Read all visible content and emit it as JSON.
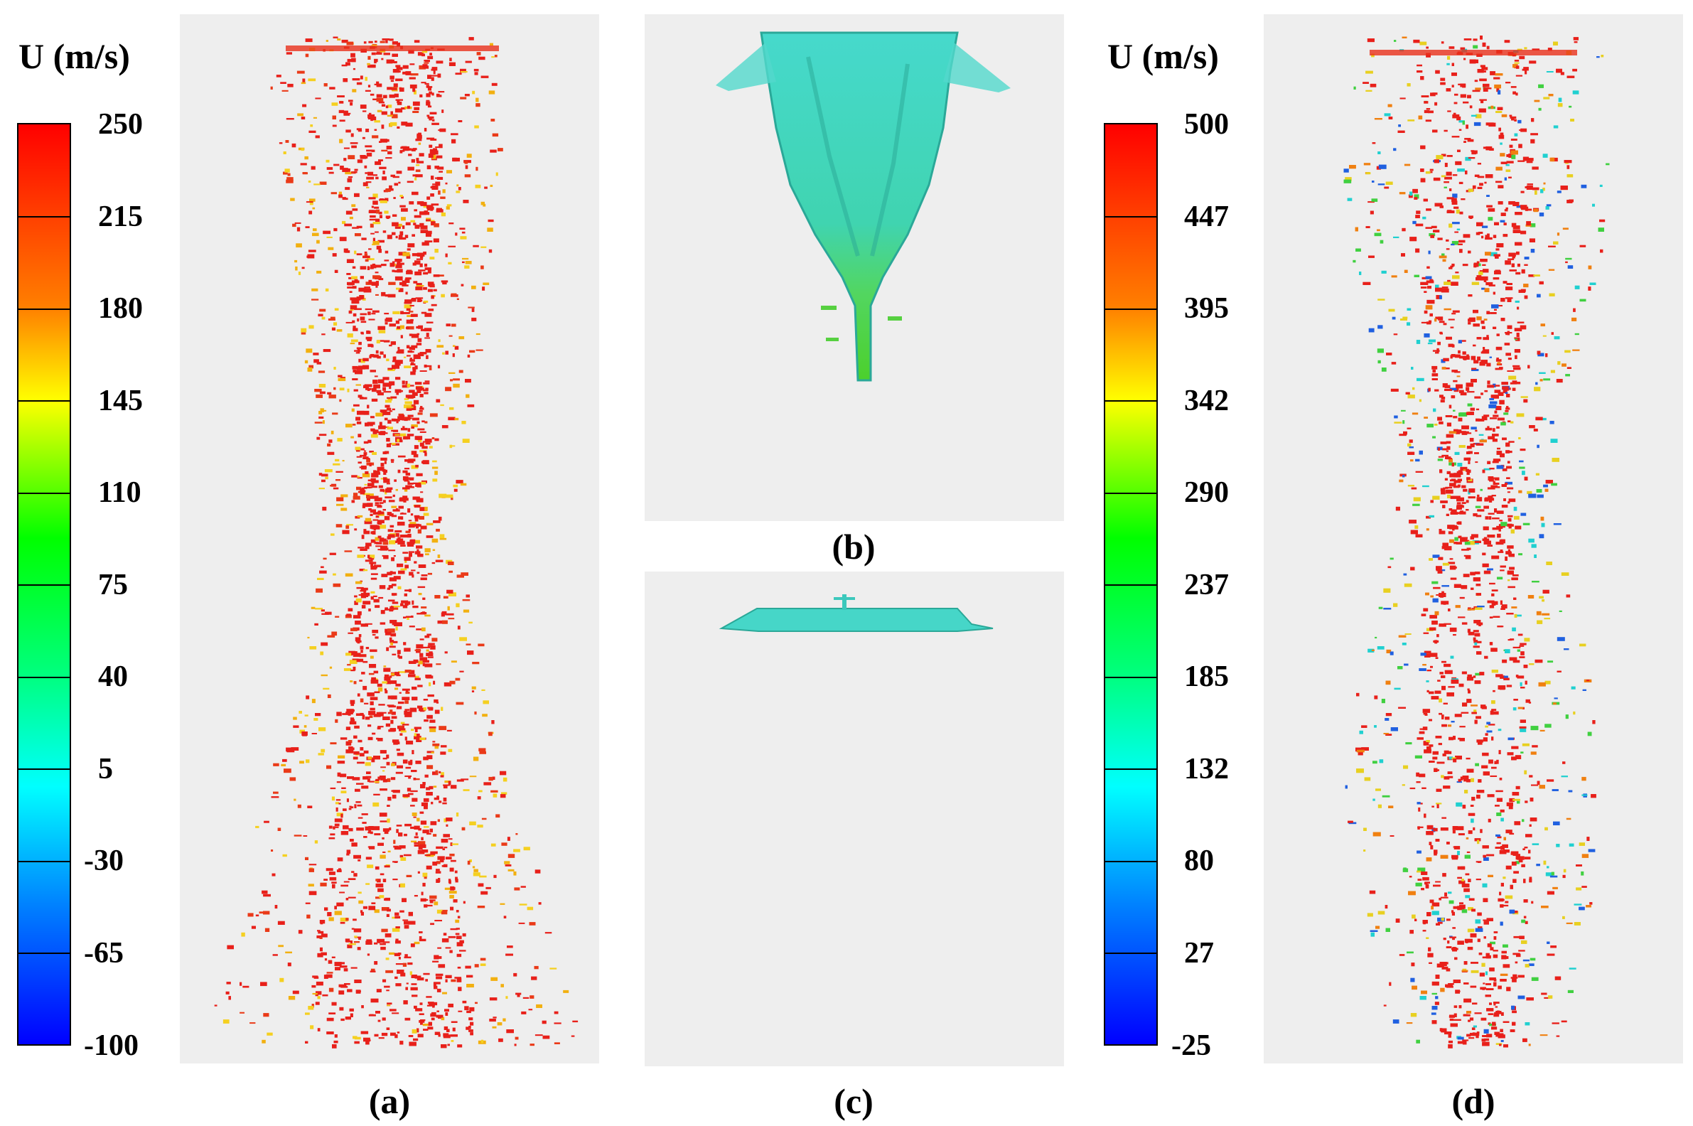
{
  "colorbar_a": {
    "title": "U (m/s)",
    "ticks": [
      "250",
      "215",
      "180",
      "145",
      "110",
      "75",
      "40",
      "5",
      "-30",
      "-65",
      "-100"
    ]
  },
  "colorbar_d": {
    "title": "U (m/s)",
    "ticks": [
      "500",
      "447",
      "395",
      "342",
      "290",
      "237",
      "185",
      "132",
      "80",
      "27",
      "-25"
    ]
  },
  "captions": {
    "a": "(a)",
    "b": "(b)",
    "c": "(c)",
    "d": "(d)"
  },
  "colors": {
    "panel_bg": "#eeeeee",
    "particle_hot": "#e8201a",
    "particle_mid": "#f2b010",
    "surface_cyan": "#3fd6c8",
    "surface_green": "#4fd63a",
    "scale": [
      "#ff0000",
      "#ff8000",
      "#ffff00",
      "#00ff00",
      "#00ffff",
      "#0080ff",
      "#0000ff"
    ]
  }
}
